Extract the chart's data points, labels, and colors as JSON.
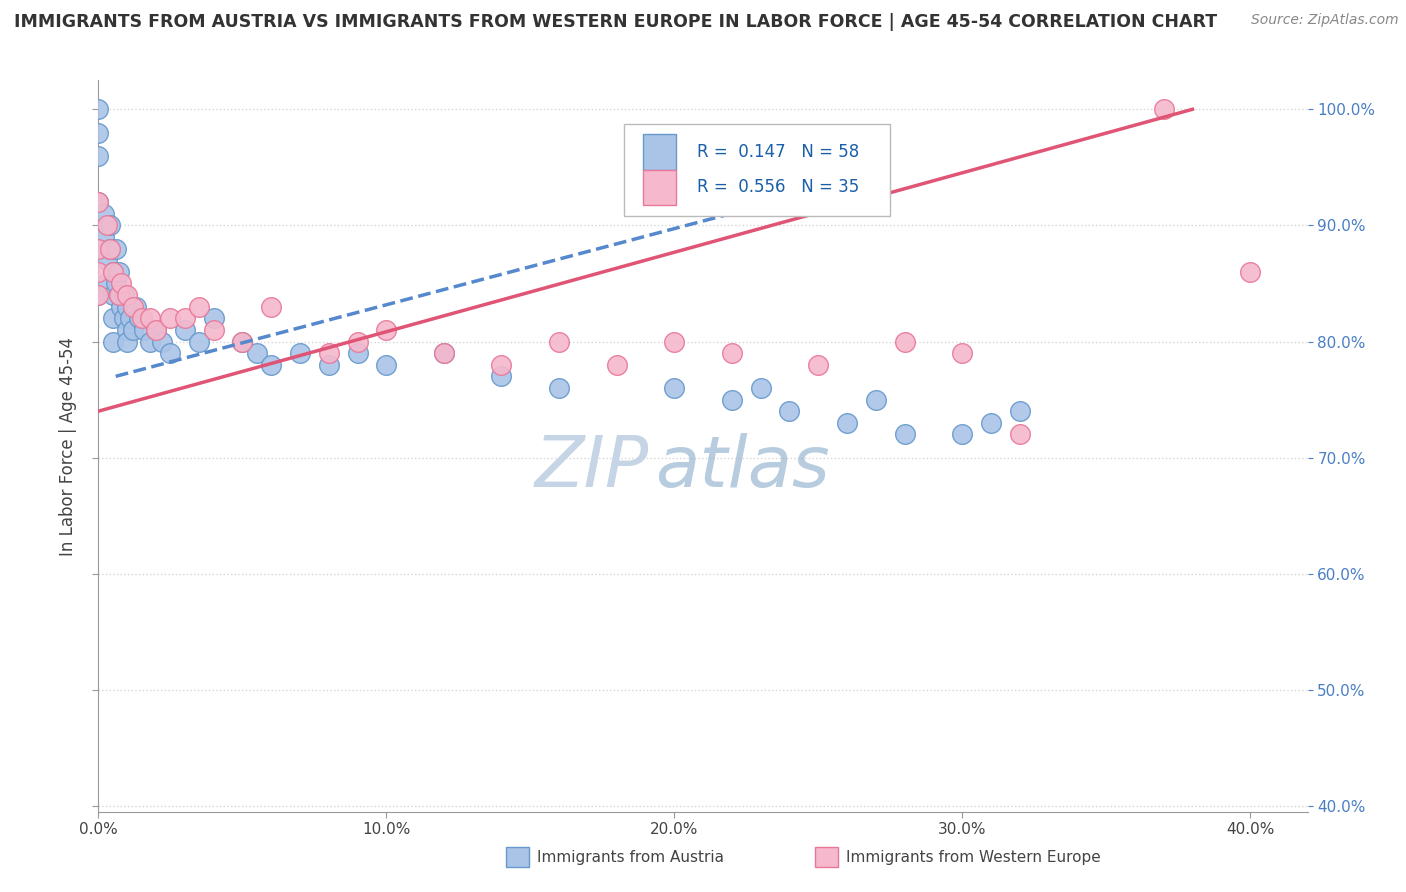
{
  "title": "IMMIGRANTS FROM AUSTRIA VS IMMIGRANTS FROM WESTERN EUROPE IN LABOR FORCE | AGE 45-54 CORRELATION CHART",
  "source": "Source: ZipAtlas.com",
  "ylabel": "In Labor Force | Age 45-54",
  "background_color": "#ffffff",
  "austria_color": "#aac4e8",
  "austria_edge": "#6699cc",
  "western_color": "#f5b8cc",
  "western_edge": "#e87898",
  "austria_R": 0.147,
  "austria_N": 58,
  "western_R": 0.556,
  "western_N": 35,
  "xmin": 0.0,
  "xmax": 0.42,
  "ymin": 0.395,
  "ymax": 1.025,
  "right_yticks": [
    0.4,
    0.5,
    0.6,
    0.7,
    0.8,
    0.9,
    1.0
  ],
  "right_ytick_labels": [
    "40.0%",
    "50.0%",
    "60.0%",
    "70.0%",
    "80.0%",
    "90.0%",
    "100.0%"
  ],
  "xtick_labels": [
    "0.0%",
    "10.0%",
    "20.0%",
    "30.0%",
    "40.0%"
  ],
  "xtick_values": [
    0.0,
    0.1,
    0.2,
    0.3,
    0.4
  ],
  "blue_line_color": "#5588cc",
  "pink_line_color": "#e05575",
  "watermark_zip_color": "#c8d8e8",
  "watermark_atlas_color": "#b0c8e0",
  "austria_x": [
    0.0,
    0.0,
    0.0,
    0.0,
    0.0,
    0.0,
    0.002,
    0.002,
    0.003,
    0.003,
    0.004,
    0.004,
    0.005,
    0.005,
    0.005,
    0.005,
    0.006,
    0.006,
    0.007,
    0.007,
    0.008,
    0.009,
    0.009,
    0.01,
    0.01,
    0.01,
    0.011,
    0.012,
    0.013,
    0.014,
    0.016,
    0.018,
    0.02,
    0.022,
    0.025,
    0.03,
    0.035,
    0.04,
    0.05,
    0.055,
    0.06,
    0.07,
    0.08,
    0.09,
    0.1,
    0.12,
    0.14,
    0.16,
    0.2,
    0.22,
    0.23,
    0.24,
    0.26,
    0.27,
    0.28,
    0.3,
    0.31,
    0.32
  ],
  "austria_y": [
    1.0,
    0.98,
    0.96,
    0.92,
    0.88,
    0.84,
    0.91,
    0.89,
    0.87,
    0.85,
    0.9,
    0.88,
    0.86,
    0.84,
    0.82,
    0.8,
    0.88,
    0.85,
    0.86,
    0.84,
    0.83,
    0.82,
    0.84,
    0.83,
    0.81,
    0.8,
    0.82,
    0.81,
    0.83,
    0.82,
    0.81,
    0.8,
    0.81,
    0.8,
    0.79,
    0.81,
    0.8,
    0.82,
    0.8,
    0.79,
    0.78,
    0.79,
    0.78,
    0.79,
    0.78,
    0.79,
    0.77,
    0.76,
    0.76,
    0.75,
    0.76,
    0.74,
    0.73,
    0.75,
    0.72,
    0.72,
    0.73,
    0.74
  ],
  "western_x": [
    0.0,
    0.0,
    0.0,
    0.0,
    0.003,
    0.004,
    0.005,
    0.007,
    0.008,
    0.01,
    0.012,
    0.015,
    0.018,
    0.02,
    0.025,
    0.03,
    0.035,
    0.04,
    0.05,
    0.06,
    0.08,
    0.09,
    0.1,
    0.12,
    0.14,
    0.16,
    0.18,
    0.2,
    0.22,
    0.25,
    0.28,
    0.3,
    0.32,
    0.37,
    0.4
  ],
  "western_y": [
    0.92,
    0.88,
    0.86,
    0.84,
    0.9,
    0.88,
    0.86,
    0.84,
    0.85,
    0.84,
    0.83,
    0.82,
    0.82,
    0.81,
    0.82,
    0.82,
    0.83,
    0.81,
    0.8,
    0.83,
    0.79,
    0.8,
    0.81,
    0.79,
    0.78,
    0.8,
    0.78,
    0.8,
    0.79,
    0.78,
    0.8,
    0.79,
    0.72,
    1.0,
    0.86
  ],
  "austria_line_x": [
    0.006,
    0.25
  ],
  "austria_line_y": [
    0.77,
    0.93
  ],
  "western_line_x": [
    0.0,
    0.38
  ],
  "western_line_y": [
    0.74,
    1.0
  ]
}
